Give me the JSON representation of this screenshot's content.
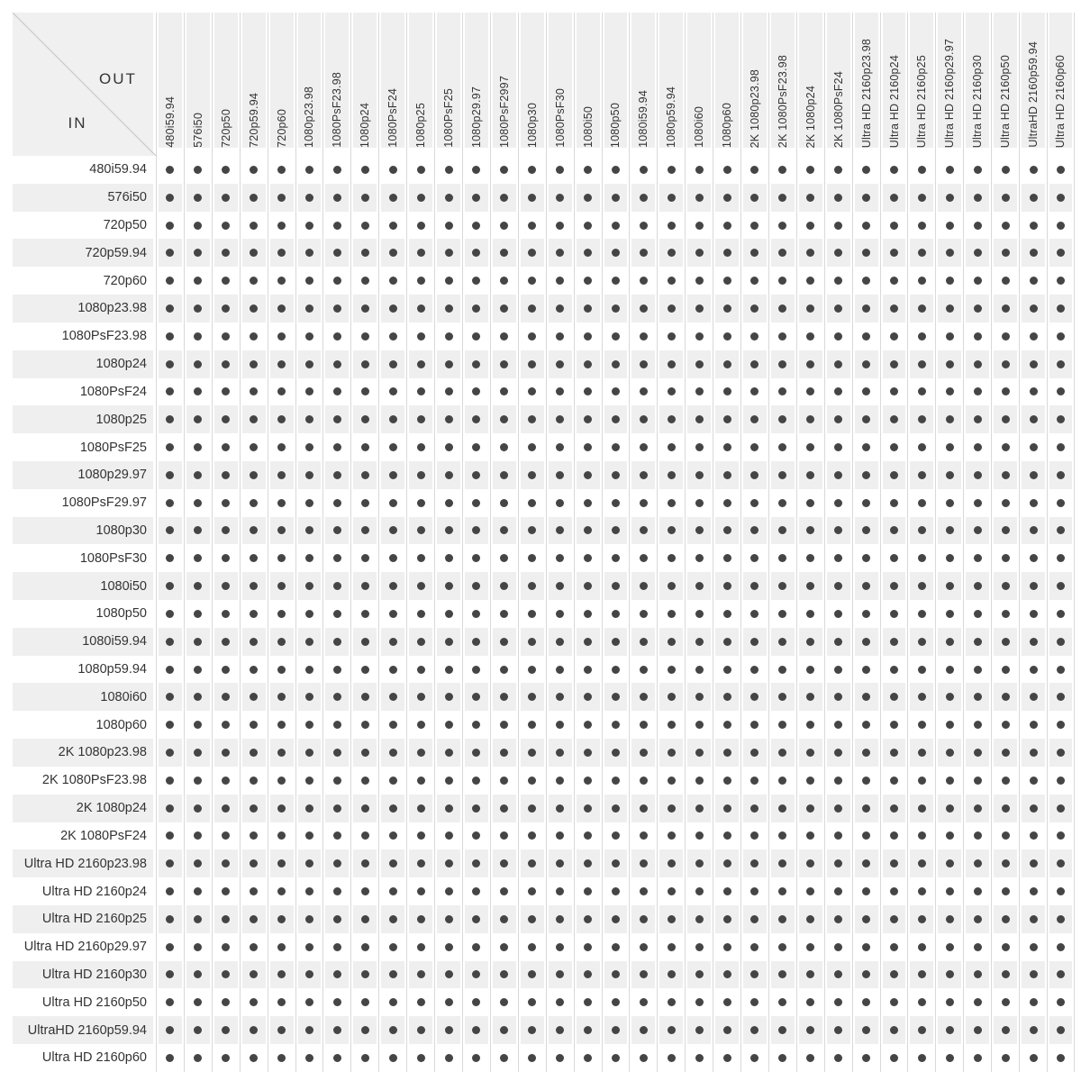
{
  "table": {
    "corner": {
      "out": "OUT",
      "in": "IN"
    },
    "out_formats": [
      "480i59.94",
      "576i50",
      "720p50",
      "720p59.94",
      "720p60",
      "1080p23.98",
      "1080PsF23.98",
      "1080p24",
      "1080PsF24",
      "1080p25",
      "1080PsF25",
      "1080p29.97",
      "1080PsF2997",
      "1080p30",
      "1080PsF30",
      "1080i50",
      "1080p50",
      "1080i59.94",
      "1080p59.94",
      "1080i60",
      "1080p60",
      "2K 1080p23.98",
      "2K 1080PsF23.98",
      "2K 1080p24",
      "2K 1080PsF24",
      "Ultra HD 2160p23.98",
      "Ultra HD 2160p24",
      "Ultra HD 2160p25",
      "Ultra HD 2160p29.97",
      "Ultra HD 2160p30",
      "Ultra HD 2160p50",
      "UltraHD 2160p59.94",
      "Ultra HD 2160p60"
    ],
    "in_formats": [
      "480i59.94",
      "576i50",
      "720p50",
      "720p59.94",
      "720p60",
      "1080p23.98",
      "1080PsF23.98",
      "1080p24",
      "1080PsF24",
      "1080p25",
      "1080PsF25",
      "1080p29.97",
      "1080PsF29.97",
      "1080p30",
      "1080PsF30",
      "1080i50",
      "1080p50",
      "1080i59.94",
      "1080p59.94",
      "1080i60",
      "1080p60",
      "2K 1080p23.98",
      "2K 1080PsF23.98",
      "2K 1080p24",
      "2K 1080PsF24",
      "Ultra HD 2160p23.98",
      "Ultra HD 2160p24",
      "Ultra HD 2160p25",
      "Ultra HD 2160p29.97",
      "Ultra HD 2160p30",
      "Ultra HD 2160p50",
      "UltraHD 2160p59.94",
      "Ultra HD 2160p60"
    ],
    "support_matrix": [
      "111111111111111111111111111111111",
      "111111111111111111111111111111111",
      "111111111111111111111111111111111",
      "111111111111111111111111111111111",
      "111111111111111111111111111111111",
      "111111111111111111111111111111111",
      "111111111111111111111111111111111",
      "111111111111111111111111111111111",
      "111111111111111111111111111111111",
      "111111111111111111111111111111111",
      "111111111111111111111111111111111",
      "111111111111111111111111111111111",
      "111111111111111111111111111111111",
      "111111111111111111111111111111111",
      "111111111111111111111111111111111",
      "111111111111111111111111111111111",
      "111111111111111111111111111111111",
      "111111111111111111111111111111111",
      "111111111111111111111111111111111",
      "111111111111111111111111111111111",
      "111111111111111111111111111111111",
      "111111111111111111111111111111111",
      "111111111111111111111111111111111",
      "111111111111111111111111111111111",
      "111111111111111111111111111111111",
      "111111111111111111111111111111111",
      "111111111111111111111111111111111",
      "111111111111111111111111111111111",
      "111111111111111111111111111111111",
      "111111111111111111111111111111111",
      "111111111111111111111111111111111",
      "111111111111111111111111111111111",
      "111111111111111111111111111111111"
    ],
    "dot_symbol": "●",
    "colors": {
      "stripe": "#efefef",
      "corner_bg": "#f0f0f0",
      "line": "#d9d9d9",
      "dot": "#454545",
      "text": "#333333",
      "diagonal": "#c9c9c9"
    }
  }
}
